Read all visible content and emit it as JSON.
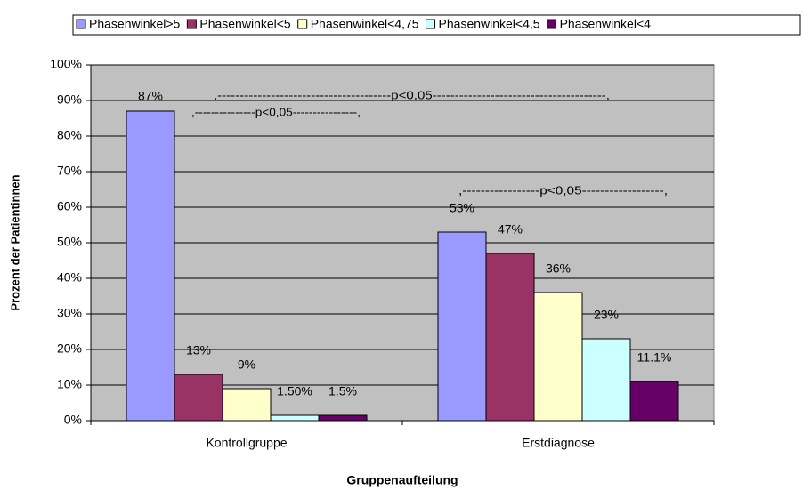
{
  "chart_data": {
    "type": "bar",
    "categories": [
      "Kontrollgruppe",
      "Erstdiagnose"
    ],
    "series": [
      {
        "name": "Phasenwinkel>5",
        "color": "#9999ff",
        "values": [
          87,
          53
        ],
        "value_labels": [
          "87%",
          "53%"
        ]
      },
      {
        "name": "Phasenwinkel<5",
        "color": "#993366",
        "values": [
          13,
          47
        ],
        "value_labels": [
          "13%",
          "47%"
        ]
      },
      {
        "name": "Phasenwinkel<4,75",
        "color": "#ffffcc",
        "values": [
          9,
          36
        ],
        "value_labels": [
          "9%",
          "36%"
        ]
      },
      {
        "name": "Phasenwinkel<4,5",
        "color": "#ccffff",
        "values": [
          1.5,
          23
        ],
        "value_labels": [
          "1.50%",
          "23%"
        ]
      },
      {
        "name": "Phasenwinkel<4",
        "color": "#660066",
        "values": [
          1.5,
          11.1
        ],
        "value_labels": [
          "1.5%",
          "11.1%"
        ]
      }
    ],
    "ylim": [
      0,
      100
    ],
    "yticks": [
      {
        "value": 0,
        "label": "0%"
      },
      {
        "value": 10,
        "label": "10%"
      },
      {
        "value": 20,
        "label": "20%"
      },
      {
        "value": 30,
        "label": "30%"
      },
      {
        "value": 40,
        "label": "40%"
      },
      {
        "value": 50,
        "label": "50%"
      },
      {
        "value": 60,
        "label": "60%"
      },
      {
        "value": 70,
        "label": "70%"
      },
      {
        "value": 80,
        "label": "80%"
      },
      {
        "value": 90,
        "label": "90%"
      },
      {
        "value": 100,
        "label": "100%"
      }
    ],
    "grid": true,
    "legend": "top",
    "xlabel": "Gruppenaufteilung",
    "ylabel": "Prozent der Patientinnen",
    "annotations": [
      ",---------------------------------------p<0,05---------------------------------------,",
      ",---------------p<0,05----------------,",
      ",-----------------p<0,05------------------,"
    ]
  }
}
